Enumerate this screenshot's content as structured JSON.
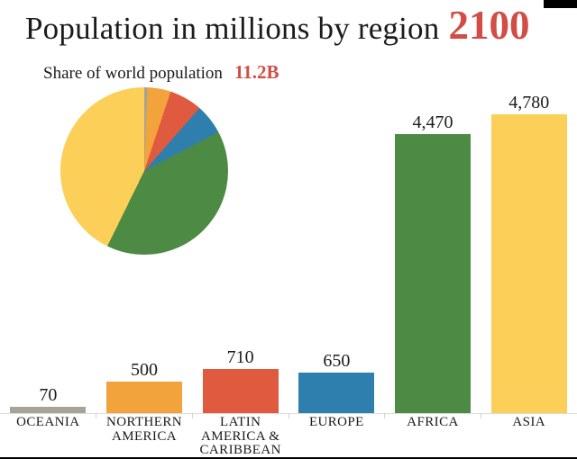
{
  "header": {
    "title": "Population in millions by region",
    "year": "2100"
  },
  "pie_section": {
    "label": "Share of world population",
    "total": "11.2B"
  },
  "colors": {
    "accent_red": "#d14d45",
    "text": "#1b1b1b",
    "axis_line": "#ddddd8",
    "top_right_box": "#000000",
    "bottom_line": "#000000"
  },
  "chart_data": [
    {
      "type": "bar",
      "title": "Population in millions by region 2100",
      "categories": [
        "OCEANIA",
        "NORTHERN AMERICA",
        "LATIN AMERICA & CARIBBEAN",
        "EUROPE",
        "AFRICA",
        "ASIA"
      ],
      "values": [
        70,
        500,
        710,
        650,
        4470,
        4780
      ],
      "value_labels": [
        "70",
        "500",
        "710",
        "650",
        "4,470",
        "4,780"
      ],
      "colors": [
        "#a6a496",
        "#f3a33c",
        "#df5a3e",
        "#2e7fae",
        "#4d8a44",
        "#fbcf58"
      ],
      "units": "millions",
      "xlabel": "",
      "ylabel": "",
      "ylim": [
        0,
        4780
      ],
      "grid": false,
      "legend": false
    },
    {
      "type": "pie",
      "title": "Share of world population",
      "total_label": "11.2B",
      "categories": [
        "OCEANIA",
        "NORTHERN AMERICA",
        "LATIN AMERICA & CARIBBEAN",
        "EUROPE",
        "AFRICA",
        "ASIA"
      ],
      "values": [
        70,
        500,
        710,
        650,
        4470,
        4780
      ],
      "shares_pct": [
        0.6,
        4.5,
        6.4,
        5.8,
        40.0,
        42.8
      ],
      "colors": [
        "#a6a496",
        "#f3a33c",
        "#df5a3e",
        "#2e7fae",
        "#4d8a44",
        "#fbcf58"
      ],
      "start_angle_deg": 0,
      "direction": "clockwise",
      "legend": false
    }
  ]
}
